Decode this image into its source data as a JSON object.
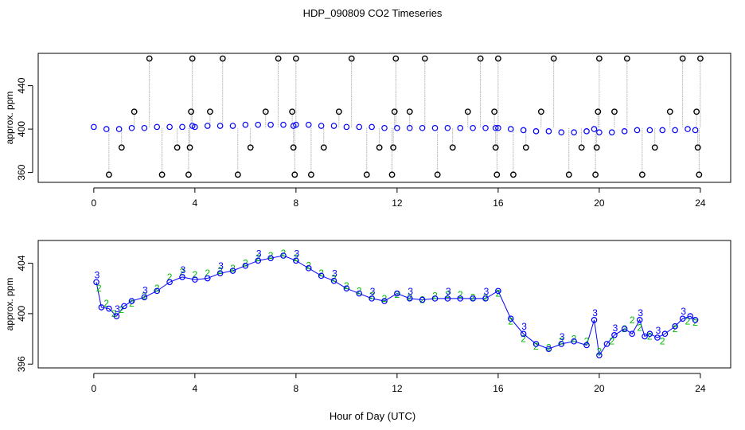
{
  "title": "HDP_090809  CO2 Timeseries",
  "xlabel": "Hour of Day (UTC)",
  "colors": {
    "axis": "#000000",
    "points": "#0000ff",
    "raw_points": "#000000",
    "raw_lines": "#9a9a9a",
    "highlight": "#00e5e5",
    "series2": "#00bb00"
  },
  "chart_data": [
    {
      "type": "scatter",
      "ylabel": "approx. ppm",
      "xlim": [
        -2.2,
        25.2
      ],
      "ylim": [
        350.9,
        469.8
      ],
      "xticks": [
        0,
        4,
        8,
        12,
        16,
        20,
        24
      ],
      "yticks": [
        360,
        400,
        440
      ],
      "series": [
        {
          "name": "",
          "x": [
            0.0,
            0.5,
            1.0,
            1.5,
            2.0,
            2.5,
            3.0,
            3.5,
            3.9,
            4.0,
            4.5,
            5.0,
            5.5,
            6.0,
            6.5,
            7.0,
            7.5,
            7.9,
            8.0,
            8.5,
            9.0,
            9.5,
            10.0,
            10.5,
            11.0,
            11.5,
            12.0,
            12.5,
            13.0,
            13.5,
            14.0,
            14.5,
            15.0,
            15.5,
            15.9,
            16.0,
            16.5,
            17.0,
            17.5,
            18.0,
            18.5,
            19.0,
            19.5,
            19.8,
            20.0,
            20.5,
            21.0,
            21.5,
            22.0,
            22.5,
            23.0,
            23.5,
            23.8
          ],
          "y": [
            402,
            400,
            400,
            401,
            401,
            402,
            402,
            402,
            403,
            402,
            403,
            403,
            403,
            404,
            404,
            404,
            404,
            403,
            404,
            404,
            403,
            403,
            402,
            402,
            402,
            401,
            401,
            401,
            401,
            401,
            401,
            401,
            401,
            401,
            401,
            401,
            400,
            399,
            398,
            398,
            397,
            397,
            398,
            400,
            397,
            397,
            398,
            399,
            399,
            399,
            399,
            400,
            399
          ]
        },
        {
          "name": "",
          "x": [
            0.6,
            1.1,
            1.6,
            2.2,
            2.7,
            3.3,
            3.75,
            3.8,
            3.85,
            3.9,
            4.6,
            5.1,
            5.7,
            6.2,
            6.8,
            7.3,
            7.85,
            7.9,
            7.95,
            8.0,
            8.6,
            9.1,
            9.7,
            10.2,
            10.8,
            11.3,
            11.8,
            11.85,
            11.9,
            11.95,
            12.5,
            13.1,
            13.6,
            14.2,
            14.8,
            15.3,
            15.85,
            15.9,
            15.95,
            16.0,
            16.6,
            17.1,
            17.7,
            18.2,
            18.8,
            19.3,
            19.85,
            19.9,
            19.95,
            20.0,
            20.6,
            21.1,
            21.7,
            22.2,
            22.8,
            23.3,
            23.85,
            23.9,
            23.95,
            24.0
          ],
          "y": [
            358,
            383,
            416,
            465,
            358,
            383,
            358,
            383,
            416,
            465,
            416,
            465,
            358,
            383,
            416,
            465,
            416,
            383,
            358,
            465,
            358,
            383,
            416,
            465,
            358,
            383,
            358,
            383,
            416,
            465,
            416,
            465,
            358,
            383,
            416,
            465,
            416,
            383,
            358,
            465,
            358,
            383,
            416,
            465,
            358,
            383,
            358,
            383,
            416,
            465,
            416,
            465,
            358,
            383,
            416,
            465,
            416,
            383,
            358,
            465
          ]
        }
      ]
    },
    {
      "type": "line",
      "xlabel": "Hour of Day (UTC)",
      "ylabel": "approx. ppm",
      "xlim": [
        -2.2,
        25.2
      ],
      "ylim": [
        395.7,
        405.8
      ],
      "xticks": [
        0,
        4,
        8,
        12,
        16,
        20,
        24
      ],
      "yticks": [
        396,
        400,
        404
      ],
      "series": [
        {
          "name": "",
          "x": [
            0.1,
            0.3,
            0.6,
            0.9,
            1.2,
            1.5,
            2.0,
            2.5,
            3.0,
            3.5,
            4.0,
            4.5,
            5.0,
            5.5,
            6.0,
            6.5,
            7.0,
            7.5,
            8.0,
            8.5,
            9.0,
            9.5,
            10.0,
            10.5,
            11.0,
            11.5,
            12.0,
            12.5,
            13.0,
            13.5,
            14.0,
            14.5,
            15.0,
            15.5,
            16.0,
            16.5,
            17.0,
            17.5,
            18.0,
            18.5,
            19.0,
            19.5,
            19.8,
            20.0,
            20.3,
            20.6,
            21.0,
            21.3,
            21.6,
            21.8,
            22.0,
            22.3,
            22.6,
            23.0,
            23.3,
            23.6,
            23.8
          ],
          "y": [
            402.5,
            400.5,
            400.4,
            399.8,
            400.6,
            401.0,
            401.3,
            401.8,
            402.5,
            402.9,
            402.7,
            402.8,
            403.2,
            403.4,
            403.8,
            404.2,
            404.4,
            404.6,
            404.2,
            403.6,
            403.0,
            402.6,
            402.0,
            401.6,
            401.2,
            401.0,
            401.6,
            401.2,
            401.1,
            401.2,
            401.2,
            401.2,
            401.2,
            401.2,
            401.8,
            399.6,
            398.4,
            397.6,
            397.2,
            397.6,
            397.8,
            397.5,
            399.5,
            396.7,
            397.6,
            398.3,
            398.8,
            398.4,
            399.5,
            398.2,
            398.4,
            398.1,
            398.4,
            399.0,
            399.6,
            399.8,
            399.5
          ]
        },
        {
          "name": "",
          "x": [
            0.2,
            0.5,
            0.8,
            1.1,
            1.5,
            2.0,
            2.5,
            3.0,
            3.5,
            4.0,
            4.5,
            5.0,
            5.5,
            6.0,
            6.5,
            7.0,
            7.5,
            8.0,
            8.5,
            9.0,
            9.5,
            10.0,
            10.5,
            11.0,
            11.5,
            12.0,
            12.5,
            13.0,
            13.5,
            14.0,
            14.5,
            15.0,
            15.5,
            16.0,
            16.5,
            17.0,
            17.5,
            18.0,
            18.5,
            19.0,
            19.5,
            20.0,
            20.5,
            21.0,
            21.3,
            21.6,
            22.0,
            22.5,
            23.0,
            23.5,
            23.8
          ],
          "y": [
            402.0,
            400.8,
            400.0,
            400.3,
            400.8,
            401.4,
            402.0,
            402.9,
            403.3,
            403.1,
            403.2,
            403.4,
            403.6,
            404.0,
            404.4,
            404.6,
            404.8,
            404.4,
            403.8,
            403.2,
            402.8,
            402.2,
            401.8,
            401.4,
            401.2,
            401.5,
            401.3,
            401.1,
            401.4,
            401.5,
            401.5,
            401.3,
            401.3,
            401.6,
            399.4,
            398.0,
            397.4,
            397.3,
            397.8,
            398.0,
            397.8,
            397.0,
            397.8,
            398.8,
            399.5,
            398.9,
            398.2,
            397.8,
            398.8,
            399.4,
            399.3
          ]
        }
      ]
    }
  ]
}
